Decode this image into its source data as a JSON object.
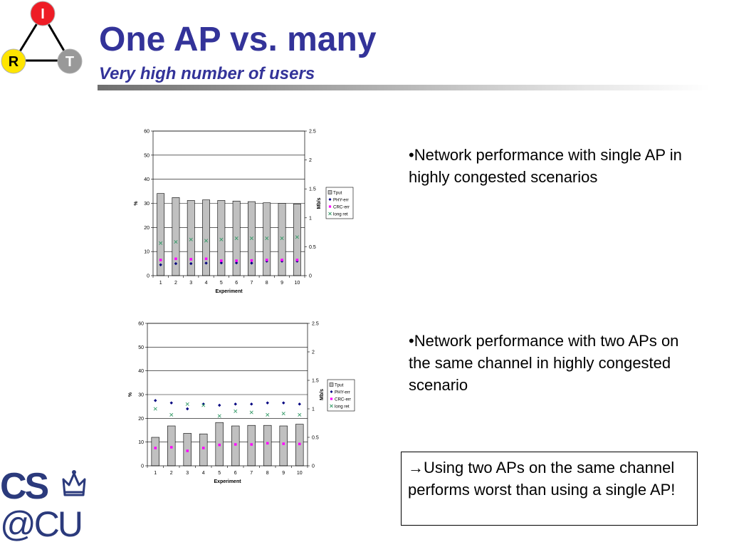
{
  "header": {
    "title": "One AP vs. many",
    "subtitle": "Very high number of users"
  },
  "logos": {
    "irt": {
      "top": "I",
      "left": "R",
      "right": "T",
      "colors": {
        "top": "#ee1c25",
        "left": "#ffe500",
        "right": "#999999"
      }
    },
    "cscu": {
      "line1": "CS",
      "line2": "@CU",
      "color": "#2b3a7c"
    }
  },
  "bullets": [
    "•Network performance with single AP in highly congested scenarios",
    "•Network performance with two APs on the same channel in highly congested scenario"
  ],
  "callout": {
    "arrow": "→",
    "text": "Using two APs on the same channel performs worst than using a single AP!"
  },
  "colors": {
    "bar_fill": "#c0c0c0",
    "phy_err": "#000080",
    "crc_err": "#ff00ff",
    "long_ret": "#339966",
    "title": "#333399"
  },
  "chart_data": [
    {
      "type": "bar",
      "categories": [
        "1",
        "2",
        "3",
        "4",
        "5",
        "6",
        "7",
        "8",
        "9",
        "10"
      ],
      "xlabel": "Experiment",
      "ylabel": "%",
      "ylabel_right": "Mb/s",
      "ylim": [
        0,
        60
      ],
      "yticks": [
        0,
        10,
        20,
        30,
        40,
        50,
        60
      ],
      "ylim_right": [
        0,
        2.5
      ],
      "yticks_right": [
        "0",
        "0.5",
        "1",
        "1.5",
        "2",
        "2.5"
      ],
      "grid": true,
      "legend_position": "right",
      "series": [
        {
          "name": "Tput",
          "kind": "bar",
          "axis": "right",
          "values": [
            1.42,
            1.35,
            1.3,
            1.31,
            1.3,
            1.29,
            1.28,
            1.26,
            1.25,
            1.24
          ]
        },
        {
          "name": "PHY-err",
          "kind": "marker",
          "marker": "diamond",
          "axis": "left",
          "values": [
            4.5,
            5,
            5,
            5.2,
            5.3,
            5.3,
            5.2,
            6,
            6,
            6
          ]
        },
        {
          "name": "CRC-err",
          "kind": "marker",
          "marker": "square",
          "axis": "left",
          "values": [
            6.5,
            7,
            6.8,
            7,
            6.2,
            6.2,
            6.3,
            6.5,
            6.5,
            6.5
          ]
        },
        {
          "name": "long ret",
          "kind": "marker",
          "marker": "x",
          "axis": "left",
          "values": [
            13.5,
            14,
            15,
            14.5,
            15,
            15.5,
            15.5,
            15.5,
            15.5,
            16
          ]
        }
      ]
    },
    {
      "type": "bar",
      "categories": [
        "1",
        "2",
        "3",
        "4",
        "5",
        "6",
        "7",
        "8",
        "9",
        "10"
      ],
      "xlabel": "Experiment",
      "ylabel": "%",
      "ylabel_right": "Mb/s",
      "ylim": [
        0,
        60
      ],
      "yticks": [
        0,
        10,
        20,
        30,
        40,
        50,
        60
      ],
      "ylim_right": [
        0,
        2.5
      ],
      "yticks_right": [
        "0",
        "0.5",
        "1",
        "1.5",
        "2",
        "2.5"
      ],
      "grid": true,
      "legend_position": "right",
      "series": [
        {
          "name": "Tput",
          "kind": "bar",
          "axis": "right",
          "values": [
            0.5,
            0.7,
            0.57,
            0.56,
            0.76,
            0.7,
            0.71,
            0.71,
            0.7,
            0.73
          ]
        },
        {
          "name": "PHY-err",
          "kind": "marker",
          "marker": "diamond",
          "axis": "left",
          "values": [
            27.5,
            26.5,
            24,
            26,
            25.5,
            26,
            26,
            26.5,
            26.5,
            26
          ]
        },
        {
          "name": "CRC-err",
          "kind": "marker",
          "marker": "square",
          "axis": "left",
          "values": [
            7.5,
            7.8,
            6.3,
            7.5,
            8.8,
            9,
            9,
            9.5,
            9.3,
            9.2
          ]
        },
        {
          "name": "long ret",
          "kind": "marker",
          "marker": "x",
          "axis": "left",
          "values": [
            24,
            21.5,
            26,
            25.5,
            21,
            23,
            22.5,
            21.5,
            22,
            21.5
          ]
        }
      ]
    }
  ]
}
